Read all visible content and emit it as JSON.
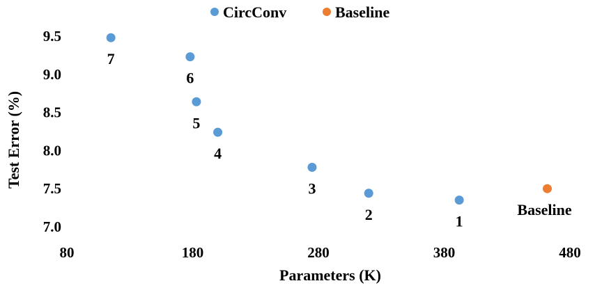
{
  "chart_data": {
    "type": "scatter",
    "title": "",
    "xlabel": "Parameters (K)",
    "ylabel": "Test Error (%)",
    "xlim": [
      80,
      480
    ],
    "ylim": [
      7.0,
      9.5
    ],
    "xticks": [
      80,
      180,
      280,
      380,
      480
    ],
    "yticks": [
      7.0,
      7.5,
      8.0,
      8.5,
      9.0,
      9.5
    ],
    "xtick_labels": [
      "80",
      "180",
      "280",
      "380",
      "480"
    ],
    "ytick_labels": [
      "7.0",
      "7.5",
      "8.0",
      "8.5",
      "9.0",
      "9.5"
    ],
    "grid": false,
    "legend_position": "top",
    "series": [
      {
        "name": "CircConv",
        "color": "#5b9bd5",
        "points": [
          {
            "x": 115,
            "y": 9.48,
            "label": "7"
          },
          {
            "x": 178,
            "y": 9.23,
            "label": "6"
          },
          {
            "x": 183,
            "y": 8.64,
            "label": "5"
          },
          {
            "x": 200,
            "y": 8.24,
            "label": "4"
          },
          {
            "x": 275,
            "y": 7.78,
            "label": "3"
          },
          {
            "x": 320,
            "y": 7.44,
            "label": "2"
          },
          {
            "x": 392,
            "y": 7.35,
            "label": "1"
          }
        ]
      },
      {
        "name": "Baseline",
        "color": "#ed7d31",
        "points": [
          {
            "x": 462,
            "y": 7.5,
            "label": "Baseline"
          }
        ]
      }
    ]
  }
}
